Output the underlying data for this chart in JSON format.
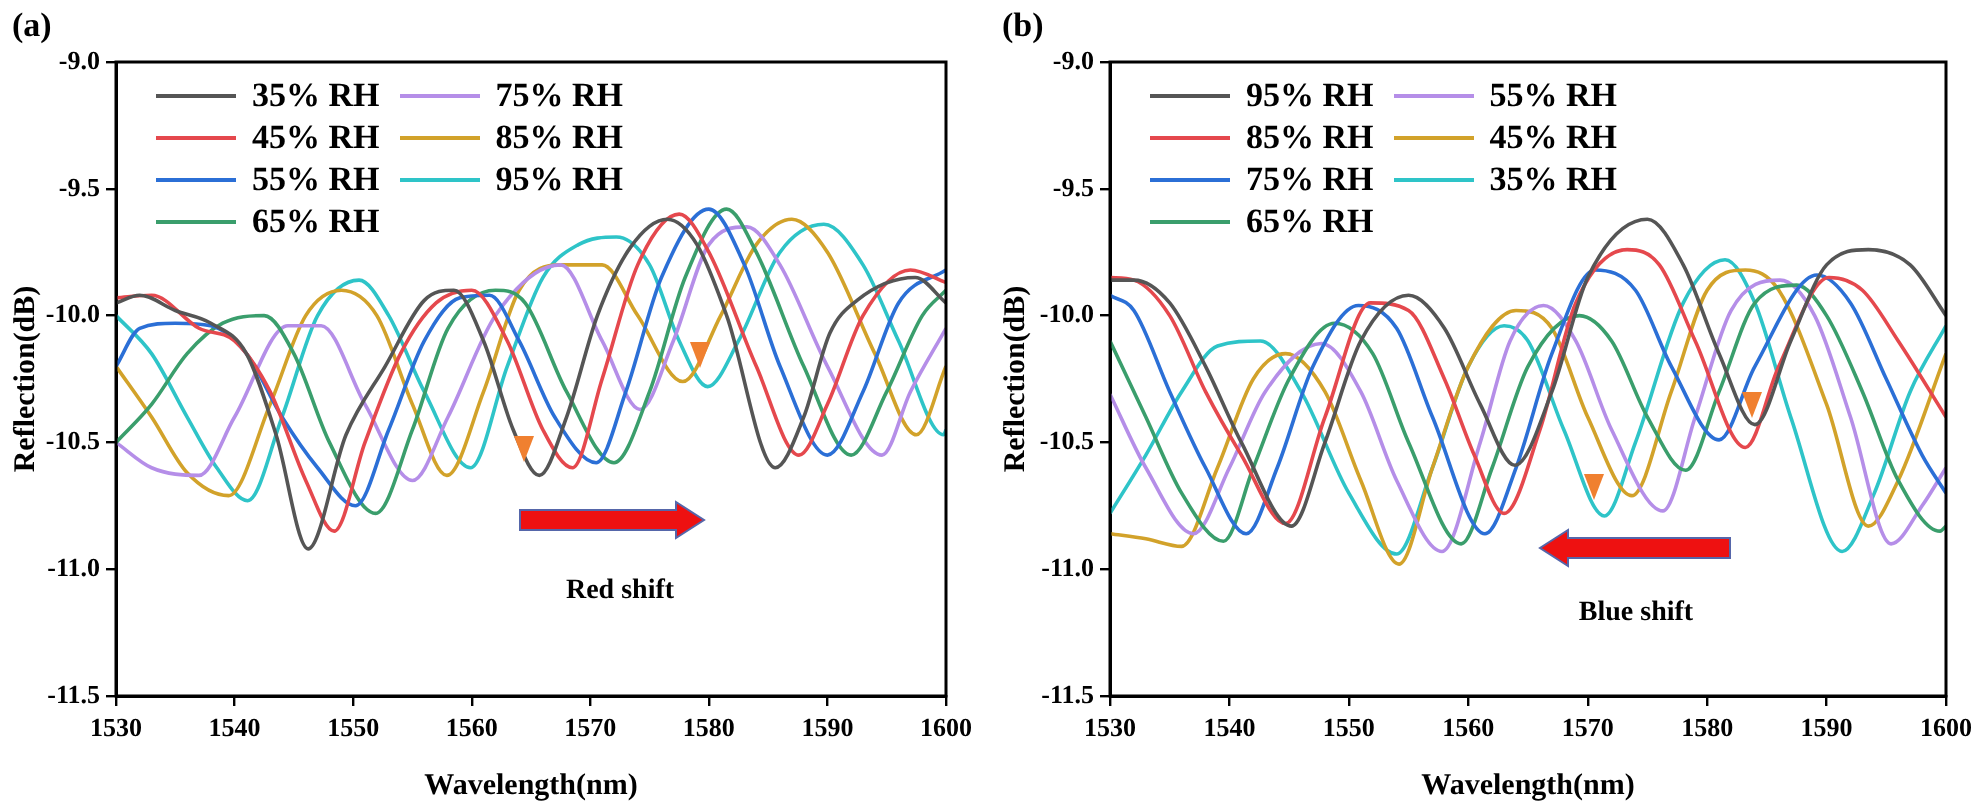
{
  "chart_data": [
    {
      "type": "line",
      "title": "(a)",
      "xlabel": "Wavelength(nm)",
      "ylabel": "Reflection(dB)",
      "xlim": [
        1530,
        1600
      ],
      "xticks": [
        1530,
        1540,
        1550,
        1560,
        1570,
        1580,
        1590,
        1600
      ],
      "ylim": [
        -11.5,
        -9.0
      ],
      "yticks": [
        {
          "value": -11.5,
          "label": "-11.5"
        },
        {
          "value": -11.0,
          "label": "-11.0"
        },
        {
          "value": -10.5,
          "label": "-10.5"
        },
        {
          "value": -10.0,
          "label": "-10.0"
        },
        {
          "value": -9.5,
          "label": "-9.5"
        },
        {
          "value": -9.0,
          "label": "-9.0"
        }
      ],
      "grid": false,
      "legend": "top left",
      "marker": "none",
      "annotations": [
        "Red shift"
      ],
      "series": [
        {
          "name": "35% RH",
          "color": "#555555",
          "x": [
            1530,
            1532,
            1535,
            1538,
            1541,
            1543.5,
            1546.2,
            1549.4,
            1552.7,
            1556,
            1558.5,
            1561,
            1563.5,
            1565.7,
            1568,
            1570.6,
            1573.4,
            1576.5,
            1579,
            1581.5,
            1585.6,
            1588,
            1590.2,
            1592.5,
            1597.4,
            1600
          ],
          "values": [
            -9.95,
            -9.92,
            -9.98,
            -10.03,
            -10.15,
            -10.47,
            -10.92,
            -10.47,
            -10.2,
            -9.94,
            -9.9,
            -10.1,
            -10.45,
            -10.63,
            -10.4,
            -10.0,
            -9.73,
            -9.62,
            -9.72,
            -10.0,
            -10.6,
            -10.4,
            -10.07,
            -9.94,
            -9.85,
            -9.95
          ]
        },
        {
          "name": "45% RH",
          "color": "#e5484d",
          "x": [
            1530,
            1533,
            1537,
            1540,
            1543,
            1546,
            1548.4,
            1551,
            1554,
            1557,
            1560,
            1563,
            1566,
            1568.5,
            1571,
            1574,
            1577.5,
            1580,
            1584,
            1587.6,
            1590,
            1593,
            1597,
            1600
          ],
          "values": [
            -9.93,
            -9.92,
            -10.05,
            -10.1,
            -10.3,
            -10.65,
            -10.85,
            -10.5,
            -10.15,
            -9.95,
            -9.9,
            -10.1,
            -10.45,
            -10.6,
            -10.25,
            -9.8,
            -9.6,
            -9.75,
            -10.2,
            -10.55,
            -10.35,
            -10.0,
            -9.82,
            -9.87
          ]
        },
        {
          "name": "55% RH",
          "color": "#2b6fd6",
          "x": [
            1530,
            1532,
            1535,
            1538,
            1541,
            1544,
            1547,
            1550.2,
            1553,
            1556,
            1559,
            1561.5,
            1564,
            1567,
            1570.5,
            1573,
            1576,
            1580,
            1583,
            1586,
            1590,
            1593,
            1596,
            1600
          ],
          "values": [
            -10.2,
            -10.05,
            -10.03,
            -10.04,
            -10.15,
            -10.4,
            -10.6,
            -10.75,
            -10.45,
            -10.1,
            -9.93,
            -9.92,
            -10.1,
            -10.4,
            -10.58,
            -10.3,
            -9.85,
            -9.58,
            -9.8,
            -10.2,
            -10.55,
            -10.3,
            -9.95,
            -9.82
          ]
        },
        {
          "name": "65% RH",
          "color": "#3a9e6c",
          "x": [
            1530,
            1533,
            1536,
            1539,
            1542.5,
            1545,
            1548,
            1551.9,
            1555,
            1558,
            1562,
            1564.5,
            1568,
            1572,
            1575,
            1578,
            1581.5,
            1584,
            1588,
            1592,
            1595,
            1598,
            1600
          ],
          "values": [
            -10.5,
            -10.35,
            -10.15,
            -10.03,
            -10.0,
            -10.15,
            -10.5,
            -10.78,
            -10.45,
            -10.05,
            -9.9,
            -9.95,
            -10.3,
            -10.58,
            -10.3,
            -9.85,
            -9.58,
            -9.75,
            -10.2,
            -10.55,
            -10.3,
            -10.0,
            -9.9
          ]
        },
        {
          "name": "75% RH",
          "color": "#b58ee8",
          "x": [
            1530,
            1533,
            1537,
            1540,
            1544.5,
            1547.3,
            1551,
            1555,
            1558,
            1562,
            1567.5,
            1571,
            1574.2,
            1577,
            1580,
            1583.2,
            1586,
            1590,
            1594.6,
            1597,
            1600
          ],
          "values": [
            -10.5,
            -10.6,
            -10.63,
            -10.4,
            -10.04,
            -10.04,
            -10.35,
            -10.65,
            -10.4,
            -10.0,
            -9.8,
            -10.1,
            -10.37,
            -10.1,
            -9.72,
            -9.65,
            -9.8,
            -10.2,
            -10.55,
            -10.3,
            -10.05
          ]
        },
        {
          "name": "85% RH",
          "color": "#d2a22a",
          "x": [
            1530,
            1533,
            1536,
            1539.5,
            1543,
            1546,
            1549,
            1552,
            1555,
            1557.9,
            1561,
            1564,
            1567.5,
            1571,
            1574,
            1577.8,
            1581,
            1584,
            1587,
            1590,
            1594,
            1597.5,
            1600
          ],
          "values": [
            -10.2,
            -10.4,
            -10.62,
            -10.71,
            -10.35,
            -10.0,
            -9.9,
            -10.0,
            -10.35,
            -10.63,
            -10.3,
            -9.9,
            -9.8,
            -9.8,
            -10.0,
            -10.26,
            -10.0,
            -9.72,
            -9.62,
            -9.75,
            -10.15,
            -10.47,
            -10.2
          ]
        },
        {
          "name": "95% RH",
          "color": "#2ec4c8",
          "x": [
            1530,
            1533,
            1536,
            1538.5,
            1541.1,
            1544,
            1547,
            1550.5,
            1553,
            1556,
            1559.9,
            1563,
            1566,
            1569,
            1572.2,
            1575,
            1577.5,
            1579.9,
            1582.5,
            1586,
            1589.7,
            1593,
            1596,
            1599.8,
            1600
          ],
          "values": [
            -10.0,
            -10.15,
            -10.4,
            -10.6,
            -10.73,
            -10.4,
            -10.0,
            -9.86,
            -10.0,
            -10.3,
            -10.6,
            -10.2,
            -9.85,
            -9.72,
            -9.69,
            -9.8,
            -10.1,
            -10.28,
            -10.1,
            -9.75,
            -9.64,
            -9.8,
            -10.1,
            -10.47,
            -10.45
          ]
        }
      ]
    },
    {
      "type": "line",
      "title": "(b)",
      "xlabel": "Wavelength(nm)",
      "ylabel": "Reflection(dB)",
      "xlim": [
        1530,
        1600
      ],
      "xticks": [
        1530,
        1540,
        1550,
        1560,
        1570,
        1580,
        1590,
        1600
      ],
      "ylim": [
        -11.5,
        -9.0
      ],
      "yticks": [
        {
          "value": -11.5,
          "label": "-11.5"
        },
        {
          "value": -11.0,
          "label": "-11.0"
        },
        {
          "value": -10.5,
          "label": "-10.5"
        },
        {
          "value": -10.0,
          "label": "-10.0"
        },
        {
          "value": -9.5,
          "label": "-9.5"
        },
        {
          "value": -9.0,
          "label": "-9.0"
        }
      ],
      "grid": false,
      "legend": "top left",
      "marker": "none",
      "annotations": [
        "Blue shift"
      ],
      "series": [
        {
          "name": "95% RH",
          "color": "#555555",
          "x": [
            1530,
            1532,
            1535,
            1538,
            1541,
            1545.2,
            1548,
            1551,
            1555,
            1558,
            1561,
            1563.9,
            1567,
            1570,
            1575,
            1578,
            1581,
            1584,
            1587,
            1590,
            1593.5,
            1597,
            1600
          ],
          "values": [
            -9.86,
            -9.86,
            -9.95,
            -10.2,
            -10.5,
            -10.83,
            -10.5,
            -10.1,
            -9.92,
            -10.05,
            -10.35,
            -10.59,
            -10.3,
            -9.85,
            -9.62,
            -9.8,
            -10.15,
            -10.43,
            -10.1,
            -9.8,
            -9.74,
            -9.8,
            -10.0
          ]
        },
        {
          "name": "85% RH",
          "color": "#e5484d",
          "x": [
            1530,
            1532,
            1535,
            1538,
            1541,
            1544.7,
            1548,
            1551.8,
            1555,
            1558,
            1560.5,
            1563,
            1566,
            1569,
            1573.3,
            1576,
            1579,
            1583.2,
            1586,
            1590.2,
            1593,
            1596,
            1600
          ],
          "values": [
            -9.85,
            -9.86,
            -10.0,
            -10.3,
            -10.55,
            -10.82,
            -10.4,
            -9.95,
            -9.98,
            -10.25,
            -10.55,
            -10.78,
            -10.45,
            -9.95,
            -9.74,
            -9.8,
            -10.1,
            -10.52,
            -10.2,
            -9.85,
            -9.9,
            -10.1,
            -10.4
          ]
        },
        {
          "name": "75% RH",
          "color": "#2b6fd6",
          "x": [
            1530,
            1532,
            1535,
            1538,
            1541.4,
            1544,
            1547,
            1550.8,
            1554,
            1557,
            1561.4,
            1564,
            1567,
            1570.6,
            1574,
            1577,
            1581,
            1584,
            1589.2,
            1592,
            1595,
            1598,
            1600
          ],
          "values": [
            -9.92,
            -9.98,
            -10.3,
            -10.6,
            -10.86,
            -10.6,
            -10.2,
            -9.96,
            -10.05,
            -10.4,
            -10.86,
            -10.6,
            -10.15,
            -9.82,
            -9.9,
            -10.2,
            -10.49,
            -10.2,
            -9.84,
            -9.95,
            -10.25,
            -10.55,
            -10.7
          ]
        },
        {
          "name": "65% RH",
          "color": "#3a9e6c",
          "x": [
            1530,
            1533,
            1536,
            1539.5,
            1542,
            1545,
            1548.8,
            1552,
            1555,
            1559.4,
            1562,
            1565,
            1569.3,
            1572,
            1575,
            1578.2,
            1581,
            1584,
            1587.5,
            1590,
            1593,
            1596,
            1599.5,
            1600
          ],
          "values": [
            -10.1,
            -10.4,
            -10.7,
            -10.89,
            -10.6,
            -10.25,
            -10.03,
            -10.15,
            -10.5,
            -10.9,
            -10.6,
            -10.2,
            -10.0,
            -10.1,
            -10.4,
            -10.61,
            -10.3,
            -9.95,
            -9.88,
            -10.0,
            -10.3,
            -10.65,
            -10.85,
            -10.83
          ]
        },
        {
          "name": "55% RH",
          "color": "#b58ee8",
          "x": [
            1530,
            1533,
            1537,
            1540,
            1543,
            1547.7,
            1551,
            1554,
            1557.8,
            1561,
            1563.5,
            1566.3,
            1569,
            1572,
            1576.3,
            1579,
            1582,
            1586.1,
            1589,
            1592,
            1595.4,
            1598,
            1600
          ],
          "values": [
            -10.31,
            -10.6,
            -10.86,
            -10.6,
            -10.3,
            -10.11,
            -10.3,
            -10.65,
            -10.93,
            -10.5,
            -10.1,
            -9.96,
            -10.1,
            -10.45,
            -10.77,
            -10.4,
            -9.98,
            -9.86,
            -10.0,
            -10.4,
            -10.9,
            -10.75,
            -10.6
          ]
        },
        {
          "name": "45% RH",
          "color": "#d2a22a",
          "x": [
            1530,
            1533,
            1536,
            1539,
            1542,
            1544.7,
            1548,
            1551,
            1554.2,
            1557,
            1560,
            1564,
            1567,
            1570,
            1573.7,
            1577,
            1580,
            1583.2,
            1586,
            1590,
            1593.5,
            1596,
            1600
          ],
          "values": [
            -10.86,
            -10.88,
            -10.91,
            -10.6,
            -10.25,
            -10.15,
            -10.3,
            -10.65,
            -10.98,
            -10.6,
            -10.2,
            -9.98,
            -10.05,
            -10.4,
            -10.71,
            -10.3,
            -9.9,
            -9.82,
            -9.9,
            -10.35,
            -10.83,
            -10.65,
            -10.15
          ]
        },
        {
          "name": "35% RH",
          "color": "#2ec4c8",
          "x": [
            1530,
            1533,
            1536,
            1539,
            1542.6,
            1546,
            1550,
            1554,
            1557,
            1560,
            1563,
            1565,
            1568,
            1571.4,
            1574,
            1578,
            1581.5,
            1584,
            1587,
            1591.3,
            1594,
            1597,
            1600
          ],
          "values": [
            -10.78,
            -10.55,
            -10.3,
            -10.12,
            -10.1,
            -10.3,
            -10.7,
            -10.94,
            -10.6,
            -10.2,
            -10.04,
            -10.1,
            -10.45,
            -10.79,
            -10.5,
            -9.95,
            -9.78,
            -9.95,
            -10.4,
            -10.93,
            -10.7,
            -10.3,
            -10.04
          ]
        }
      ]
    }
  ]
}
